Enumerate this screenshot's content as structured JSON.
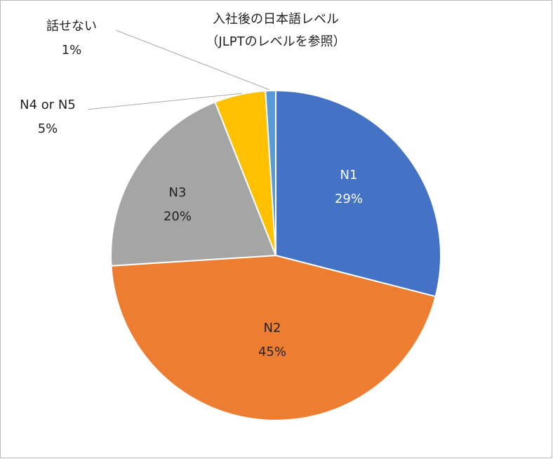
{
  "chart_data": {
    "type": "pie",
    "title": "入社後の日本語レベル",
    "subtitle": "（JLPTのレベルを参照）",
    "categories": [
      "N1",
      "N2",
      "N3",
      "N4 or N5",
      "話せない"
    ],
    "values": [
      29,
      45,
      20,
      5,
      1
    ],
    "value_labels": [
      "29%",
      "45%",
      "20%",
      "5%",
      "1%"
    ],
    "colors": [
      "#4472c4",
      "#ed7d31",
      "#a5a5a5",
      "#ffc000",
      "#5b9bd5"
    ]
  }
}
